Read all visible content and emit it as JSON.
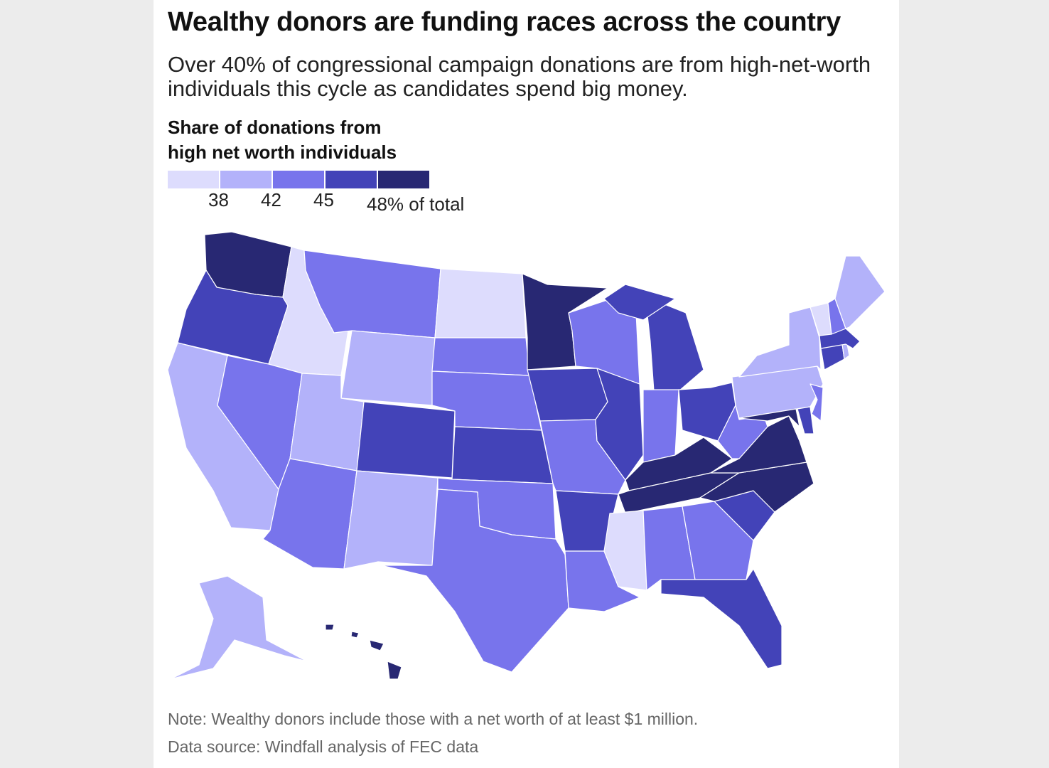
{
  "title": "Wealthy donors are funding races across the country",
  "subtitle": "Over 40% of congressional campaign donations are from high-net-worth individuals this cycle as candidates spend big money.",
  "legend": {
    "title_line1": "Share of donations from",
    "title_line2": "high net worth individuals",
    "ticks": [
      "38",
      "42",
      "45",
      "48% of total"
    ],
    "bins": [
      "<38",
      "38–42",
      "42–45",
      "45–48",
      "≥48"
    ],
    "colors": [
      "#dddcfd",
      "#b3b2fa",
      "#7874ec",
      "#4343b8",
      "#282873"
    ]
  },
  "states": {
    "WA": "≥48",
    "OR": "45–48",
    "CA": "38–42",
    "ID": "<38",
    "NV": "42–45",
    "MT": "42–45",
    "WY": "38–42",
    "UT": "38–42",
    "AZ": "42–45",
    "CO": "45–48",
    "NM": "38–42",
    "ND": "<38",
    "SD": "42–45",
    "NE": "42–45",
    "KS": "45–48",
    "OK": "42–45",
    "TX": "42–45",
    "MN": "≥48",
    "IA": "45–48",
    "MO": "42–45",
    "AR": "45–48",
    "LA": "42–45",
    "WI": "42–45",
    "IL": "45–48",
    "MI": "45–48",
    "IN": "42–45",
    "OH": "45–48",
    "KY": "≥48",
    "TN": "≥48",
    "MS": "<38",
    "AL": "42–45",
    "GA": "42–45",
    "FL": "45–48",
    "SC": "45–48",
    "NC": "≥48",
    "VA": "≥48",
    "WV": "42–45",
    "MD": "≥48",
    "DE": "45–48",
    "PA": "38–42",
    "NJ": "42–45",
    "NY": "38–42",
    "CT": "45–48",
    "RI": "38–42",
    "MA": "45–48",
    "VT": "<38",
    "NH": "42–45",
    "ME": "38–42",
    "AK": "38–42",
    "HI": "≥48"
  },
  "note": "Note: Wealthy donors include those with a net worth of at least $1 million.",
  "source": "Data source: Windfall analysis of FEC data"
}
